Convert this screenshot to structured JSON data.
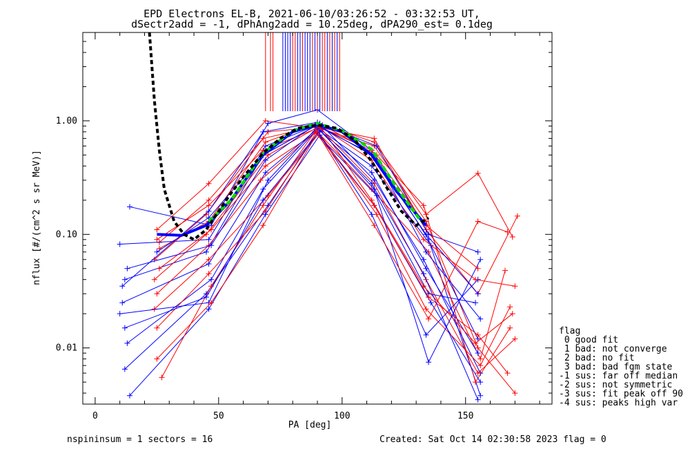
{
  "title_line1": "EPD Electrons EL-B, 2021-06-10/03:26:52 - 03:32:53 UT,",
  "title_line2": "dSectr2add = -1, dPhAng2add = 10.25deg, dPA290_est=   0.1deg",
  "footer_left": "nspininsum =  1  sectors = 16",
  "footer_right": "Created: Sat Oct 14 02:30:58 2023   flag = 0",
  "flag_legend": {
    "title": "flag",
    "items": [
      " 0 good fit",
      " 1 bad: not converge",
      " 2 bad: no fit",
      " 3 bad: bad fgm state",
      "-1 sus: far off median",
      "-2 sus: not symmetric",
      "-3 sus: fit peak off 90",
      "-4 sus: peaks high var"
    ]
  },
  "chart_data": {
    "type": "line",
    "xlabel": "PA [deg]",
    "ylabel": "nflux [#/(cm^2 s sr MeV)]",
    "xlim": [
      -5,
      185
    ],
    "ylim": [
      0.0032,
      6.0
    ],
    "yscale": "log",
    "x_ticks": [
      0,
      50,
      100,
      150
    ],
    "y_ticks": [
      0.01,
      0.1,
      1.0
    ],
    "y_tick_labels": [
      "0.01",
      "0.10",
      "1.00"
    ],
    "colors": {
      "red": "#ff0000",
      "blue": "#0000ff",
      "green": "#00dd00",
      "black": "#000000"
    },
    "series": [
      {
        "color": "red",
        "x": [
          25,
          46,
          69,
          91,
          113,
          134,
          155,
          170
        ],
        "y": [
          0.11,
          0.28,
          1.0,
          0.86,
          0.6,
          0.13,
          0.01,
          0.004
        ]
      },
      {
        "color": "blue",
        "x": [
          14,
          47,
          70,
          90,
          112,
          135,
          156
        ],
        "y": [
          0.175,
          0.12,
          0.95,
          1.25,
          0.55,
          0.09,
          0.0038
        ]
      },
      {
        "color": "red",
        "x": [
          26,
          46,
          68,
          92,
          114,
          133,
          154,
          168
        ],
        "y": [
          0.085,
          0.2,
          0.7,
          0.92,
          0.5,
          0.18,
          0.005,
          0.015
        ]
      },
      {
        "color": "blue",
        "x": [
          10,
          46,
          69,
          89,
          112,
          136,
          155
        ],
        "y": [
          0.082,
          0.09,
          0.6,
          0.9,
          0.4,
          0.08,
          0.012
        ]
      },
      {
        "color": "red",
        "x": [
          24,
          45,
          70,
          90,
          113,
          134,
          155,
          171
        ],
        "y": [
          0.06,
          0.15,
          0.8,
          0.88,
          0.7,
          0.11,
          0.03,
          0.145
        ]
      },
      {
        "color": "blue",
        "x": [
          12,
          45,
          68,
          91,
          113,
          133,
          156
        ],
        "y": [
          0.04,
          0.07,
          0.5,
          0.95,
          0.3,
          0.06,
          0.006
        ]
      },
      {
        "color": "red",
        "x": [
          26,
          47,
          69,
          90,
          112,
          135,
          156,
          166
        ],
        "y": [
          0.05,
          0.11,
          0.4,
          0.8,
          0.25,
          0.07,
          0.008,
          0.048
        ]
      },
      {
        "color": "blue",
        "x": [
          11,
          46,
          69,
          90,
          112,
          134,
          155
        ],
        "y": [
          0.025,
          0.055,
          0.35,
          0.85,
          0.35,
          0.05,
          0.009
        ]
      },
      {
        "color": "red",
        "x": [
          25,
          46,
          67,
          91,
          113,
          134,
          155,
          170
        ],
        "y": [
          0.03,
          0.08,
          0.3,
          0.87,
          0.28,
          0.04,
          0.006,
          0.012
        ]
      },
      {
        "color": "blue",
        "x": [
          13,
          47,
          68,
          89,
          114,
          135,
          154
        ],
        "y": [
          0.011,
          0.04,
          0.25,
          0.8,
          0.22,
          0.03,
          0.025
        ]
      },
      {
        "color": "red",
        "x": [
          24,
          46,
          70,
          92,
          112,
          133,
          154,
          169
        ],
        "y": [
          0.022,
          0.06,
          0.22,
          0.84,
          0.2,
          0.035,
          0.011,
          0.02
        ]
      },
      {
        "color": "blue",
        "x": [
          12,
          45,
          70,
          90,
          113,
          136,
          156
        ],
        "y": [
          0.0065,
          0.03,
          0.18,
          0.78,
          0.18,
          0.025,
          0.005
        ]
      },
      {
        "color": "red",
        "x": [
          25,
          46,
          69,
          90,
          114,
          134,
          156,
          168
        ],
        "y": [
          0.015,
          0.045,
          0.16,
          0.82,
          0.15,
          0.022,
          0.007,
          0.023
        ]
      },
      {
        "color": "blue",
        "x": [
          14,
          46,
          69,
          91,
          112,
          134,
          155
        ],
        "y": [
          0.0038,
          0.022,
          0.15,
          0.75,
          0.15,
          0.013,
          0.04
        ]
      },
      {
        "color": "red",
        "x": [
          27,
          47,
          68,
          89,
          113,
          135,
          155,
          167
        ],
        "y": [
          0.0055,
          0.035,
          0.18,
          0.8,
          0.18,
          0.028,
          0.013,
          0.006
        ]
      },
      {
        "color": "blue",
        "x": [
          10,
          46,
          70,
          90,
          113,
          135,
          156
        ],
        "y": [
          0.02,
          0.025,
          0.3,
          0.88,
          0.25,
          0.0075,
          0.06
        ]
      },
      {
        "color": "red",
        "x": [
          24,
          45,
          70,
          91,
          112,
          133,
          154,
          170
        ],
        "y": [
          0.04,
          0.1,
          0.5,
          0.9,
          0.45,
          0.09,
          0.04,
          0.035
        ]
      },
      {
        "color": "blue",
        "x": [
          13,
          47,
          69,
          89,
          113,
          134,
          156
        ],
        "y": [
          0.05,
          0.08,
          0.45,
          0.92,
          0.5,
          0.07,
          0.018
        ]
      },
      {
        "color": "red",
        "x": [
          26,
          46,
          69,
          90,
          113,
          134,
          155,
          169
        ],
        "y": [
          0.075,
          0.13,
          0.65,
          0.95,
          0.65,
          0.15,
          0.345,
          0.095
        ]
      },
      {
        "color": "blue",
        "x": [
          11,
          46,
          68,
          90,
          114,
          135,
          155
        ],
        "y": [
          0.035,
          0.16,
          0.8,
          0.97,
          0.6,
          0.1,
          0.07
        ]
      },
      {
        "color": "red",
        "x": [
          25,
          47,
          68,
          90,
          113,
          135,
          155,
          167
        ],
        "y": [
          0.008,
          0.025,
          0.12,
          0.78,
          0.12,
          0.018,
          0.13,
          0.105
        ]
      },
      {
        "color": "blue",
        "x": [
          12,
          45,
          68,
          91,
          112,
          133,
          155
        ],
        "y": [
          0.015,
          0.028,
          0.2,
          0.82,
          0.28,
          0.045,
          0.0035
        ]
      },
      {
        "color": "red",
        "x": [
          25,
          46,
          68,
          91,
          112,
          134,
          155
        ],
        "y": [
          0.09,
          0.18,
          0.55,
          0.88,
          0.55,
          0.12,
          0.05
        ]
      },
      {
        "color": "blue",
        "x": [
          25,
          46,
          68,
          90,
          112,
          134,
          155
        ],
        "y": [
          0.07,
          0.14,
          0.5,
          0.92,
          0.5,
          0.1,
          0.03
        ]
      }
    ],
    "median_fit": {
      "color": "blue",
      "x": [
        25,
        35,
        45,
        55,
        68,
        80,
        90,
        100,
        112,
        122,
        134
      ],
      "y": [
        0.1,
        0.098,
        0.12,
        0.2,
        0.5,
        0.8,
        0.93,
        0.8,
        0.5,
        0.24,
        0.12
      ]
    },
    "green_fit": {
      "color": "green",
      "x": [
        46,
        55,
        68,
        80,
        90,
        100,
        112,
        122,
        132
      ],
      "y": [
        0.13,
        0.2,
        0.52,
        0.82,
        0.95,
        0.82,
        0.56,
        0.26,
        0.13
      ]
    },
    "black_fit": {
      "color": "black",
      "x": [
        22,
        23,
        24,
        26,
        28,
        32,
        36,
        40,
        45,
        50,
        55,
        60,
        68,
        75,
        82,
        90,
        98,
        105,
        112,
        118,
        124,
        130,
        135
      ],
      "y": [
        6.0,
        3.0,
        1.5,
        0.55,
        0.25,
        0.13,
        0.1,
        0.09,
        0.11,
        0.16,
        0.23,
        0.32,
        0.52,
        0.7,
        0.86,
        0.92,
        0.86,
        0.68,
        0.44,
        0.26,
        0.16,
        0.12,
        0.14
      ]
    },
    "red_markers": [
      69,
      71,
      72,
      80,
      81,
      84,
      88,
      90,
      92,
      93,
      95,
      97,
      99
    ],
    "blue_markers": [
      76,
      77,
      78,
      79,
      82,
      83,
      85,
      86,
      87,
      89,
      91,
      94,
      96,
      98
    ]
  }
}
